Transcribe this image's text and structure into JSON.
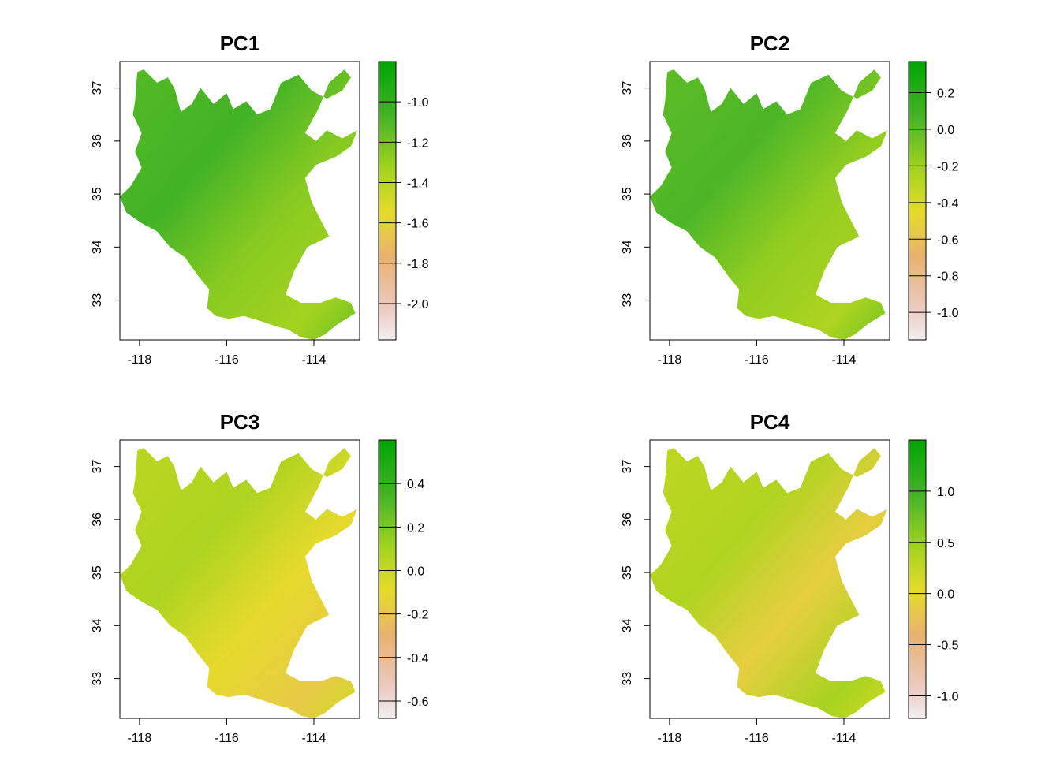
{
  "chart_data": [
    {
      "type": "heatmap",
      "title": "PC1",
      "x_ticks": [
        -118,
        -116,
        -114
      ],
      "x_tick_labels": [
        "-118",
        "-116",
        "-114"
      ],
      "y_ticks": [
        33,
        34,
        35,
        36,
        37
      ],
      "y_tick_labels": [
        "33",
        "34",
        "35",
        "36",
        "37"
      ],
      "xlim": [
        -118.45,
        -112.95
      ],
      "ylim": [
        32.25,
        37.5
      ],
      "legend": {
        "range": [
          -2.18,
          -0.8
        ],
        "ticks": [
          -2.0,
          -1.8,
          -1.6,
          -1.4,
          -1.2,
          -1.0
        ],
        "tick_labels": [
          "-2.0",
          "-1.8",
          "-1.6",
          "-1.4",
          "-1.2",
          "-1.0"
        ]
      },
      "typical_value": -1.2
    },
    {
      "type": "heatmap",
      "title": "PC2",
      "x_ticks": [
        -118,
        -116,
        -114
      ],
      "x_tick_labels": [
        "-118",
        "-116",
        "-114"
      ],
      "y_ticks": [
        33,
        34,
        35,
        36,
        37
      ],
      "y_tick_labels": [
        "33",
        "34",
        "35",
        "36",
        "37"
      ],
      "xlim": [
        -118.45,
        -112.95
      ],
      "ylim": [
        32.25,
        37.5
      ],
      "legend": {
        "range": [
          -1.15,
          0.37
        ],
        "ticks": [
          -1.0,
          -0.8,
          -0.6,
          -0.4,
          -0.2,
          0.0,
          0.2
        ],
        "tick_labels": [
          "-1.0",
          "-0.8",
          "-0.6",
          "-0.4",
          "-0.2",
          "0.0",
          "0.2"
        ]
      },
      "typical_value": -0.1
    },
    {
      "type": "heatmap",
      "title": "PC3",
      "x_ticks": [
        -118,
        -116,
        -114
      ],
      "x_tick_labels": [
        "-118",
        "-116",
        "-114"
      ],
      "y_ticks": [
        33,
        34,
        35,
        36,
        37
      ],
      "y_tick_labels": [
        "33",
        "34",
        "35",
        "36",
        "37"
      ],
      "xlim": [
        -118.45,
        -112.95
      ],
      "ylim": [
        32.25,
        37.5
      ],
      "legend": {
        "range": [
          -0.68,
          0.6
        ],
        "ticks": [
          -0.6,
          -0.4,
          -0.2,
          0.0,
          0.2,
          0.4
        ],
        "tick_labels": [
          "-0.6",
          "-0.4",
          "-0.2",
          "0.0",
          "0.2",
          "0.4"
        ]
      },
      "typical_value": -0.05
    },
    {
      "type": "heatmap",
      "title": "PC4",
      "x_ticks": [
        -118,
        -116,
        -114
      ],
      "x_tick_labels": [
        "-118",
        "-116",
        "-114"
      ],
      "y_ticks": [
        33,
        34,
        35,
        36,
        37
      ],
      "y_tick_labels": [
        "33",
        "34",
        "35",
        "36",
        "37"
      ],
      "xlim": [
        -118.45,
        -112.95
      ],
      "ylim": [
        32.25,
        37.5
      ],
      "legend": {
        "range": [
          -1.22,
          1.5
        ],
        "ticks": [
          -1.0,
          -0.5,
          0.0,
          0.5,
          1.0
        ],
        "tick_labels": [
          "-1.0",
          "-0.5",
          "0.0",
          "0.5",
          "1.0"
        ]
      },
      "typical_value": 0.1
    }
  ],
  "region_outline_lonlat": [
    [
      -118.45,
      34.95
    ],
    [
      -118.2,
      35.15
    ],
    [
      -117.95,
      35.5
    ],
    [
      -118.1,
      35.8
    ],
    [
      -117.95,
      36.15
    ],
    [
      -118.15,
      36.5
    ],
    [
      -118.1,
      36.75
    ],
    [
      -118.05,
      37.3
    ],
    [
      -117.9,
      37.35
    ],
    [
      -117.6,
      37.1
    ],
    [
      -117.35,
      37.2
    ],
    [
      -117.2,
      37.0
    ],
    [
      -117.05,
      36.55
    ],
    [
      -116.8,
      36.7
    ],
    [
      -116.6,
      37.0
    ],
    [
      -116.3,
      36.7
    ],
    [
      -116.0,
      36.9
    ],
    [
      -115.85,
      36.6
    ],
    [
      -115.55,
      36.75
    ],
    [
      -115.3,
      36.5
    ],
    [
      -115.0,
      36.6
    ],
    [
      -114.75,
      37.1
    ],
    [
      -114.35,
      37.25
    ],
    [
      -114.05,
      36.95
    ],
    [
      -113.7,
      36.8
    ],
    [
      -113.35,
      36.95
    ],
    [
      -113.15,
      37.2
    ],
    [
      -113.3,
      37.35
    ],
    [
      -113.65,
      37.1
    ],
    [
      -113.9,
      36.6
    ],
    [
      -114.2,
      36.15
    ],
    [
      -113.95,
      36.0
    ],
    [
      -113.7,
      36.2
    ],
    [
      -113.35,
      36.05
    ],
    [
      -113.0,
      36.2
    ],
    [
      -113.15,
      35.9
    ],
    [
      -113.5,
      35.7
    ],
    [
      -113.95,
      35.55
    ],
    [
      -114.2,
      35.3
    ],
    [
      -114.05,
      34.85
    ],
    [
      -113.9,
      34.6
    ],
    [
      -113.65,
      34.2
    ],
    [
      -113.9,
      34.1
    ],
    [
      -114.15,
      34.0
    ],
    [
      -114.45,
      33.55
    ],
    [
      -114.65,
      33.1
    ],
    [
      -114.3,
      32.95
    ],
    [
      -113.85,
      32.95
    ],
    [
      -113.5,
      33.05
    ],
    [
      -113.15,
      32.95
    ],
    [
      -113.05,
      32.75
    ],
    [
      -113.45,
      32.55
    ],
    [
      -113.75,
      32.35
    ],
    [
      -114.0,
      32.25
    ],
    [
      -114.3,
      32.3
    ],
    [
      -114.6,
      32.45
    ],
    [
      -114.85,
      32.5
    ],
    [
      -115.2,
      32.6
    ],
    [
      -115.6,
      32.7
    ],
    [
      -115.95,
      32.65
    ],
    [
      -116.25,
      32.7
    ],
    [
      -116.45,
      32.85
    ],
    [
      -116.4,
      33.2
    ],
    [
      -116.65,
      33.45
    ],
    [
      -116.95,
      33.8
    ],
    [
      -117.3,
      34.0
    ],
    [
      -117.6,
      34.3
    ],
    [
      -117.95,
      34.45
    ],
    [
      -118.3,
      34.65
    ],
    [
      -118.45,
      34.95
    ]
  ]
}
